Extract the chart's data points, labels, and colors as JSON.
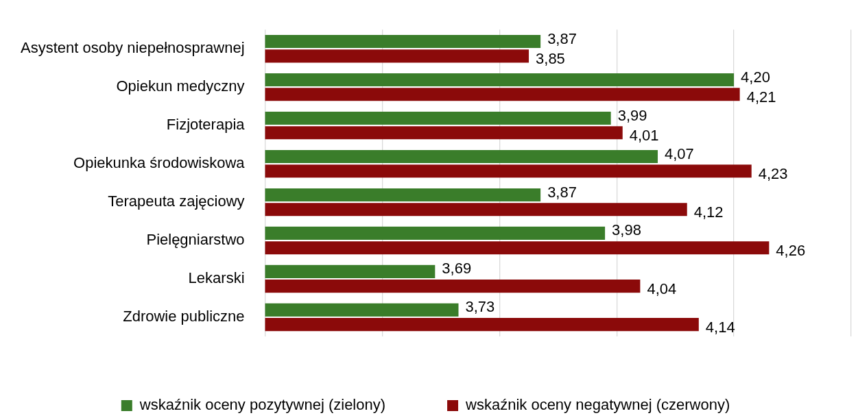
{
  "chart_data": {
    "type": "bar",
    "orientation": "horizontal",
    "categories": [
      "Asystent osoby niepełnosprawnej",
      "Opiekun medyczny",
      "Fizjoterapia",
      "Opiekunka środowiskowa",
      "Terapeuta zajęciowy",
      "Pielęgniarstwo",
      "Lekarski",
      "Zdrowie publiczne"
    ],
    "series": [
      {
        "name": "wskaźnik oceny pozytywnej (zielony)",
        "color": "#3a7d2a",
        "values": [
          3.87,
          4.2,
          3.99,
          4.07,
          3.87,
          3.98,
          3.69,
          3.73
        ],
        "value_labels": [
          "3,87",
          "4,20",
          "3,99",
          "4,07",
          "3,87",
          "3,98",
          "3,69",
          "3,73"
        ]
      },
      {
        "name": "wskaźnik oceny negatywnej (czerwony)",
        "color": "#8b0a0a",
        "values": [
          3.85,
          4.21,
          4.01,
          4.23,
          4.12,
          4.26,
          4.04,
          4.14
        ],
        "value_labels": [
          "3,85",
          "4,21",
          "4,01",
          "4,23",
          "4,12",
          "4,26",
          "4,04",
          "4,14"
        ]
      }
    ],
    "xlim": [
      3.4,
      4.4
    ],
    "xticks": [
      {
        "value": 3.4,
        "label": null
      },
      {
        "value": 3.6,
        "label": null
      },
      {
        "value": 3.8,
        "label": null
      },
      {
        "value": 4.0,
        "label": null
      },
      {
        "value": 4.2,
        "label": null
      },
      {
        "value": 4.4,
        "label": null
      }
    ],
    "grid": "x",
    "tick_labels": "y",
    "legend": "bottom"
  }
}
